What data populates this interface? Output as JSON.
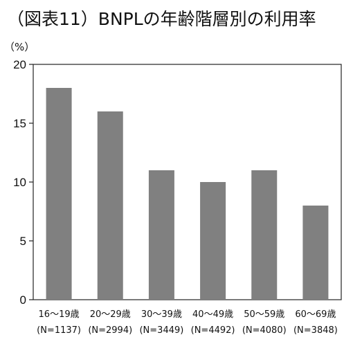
{
  "chart_data": {
    "type": "bar",
    "title": "（図表11）BNPLの年齢階層別の利用率",
    "ylabel": "（%）",
    "xlabel": "",
    "ylim": [
      0,
      20
    ],
    "yticks": [
      0,
      5,
      10,
      15,
      20
    ],
    "grid": false,
    "categories": [
      {
        "name": "16～19歳",
        "sub": "(N=1137)"
      },
      {
        "name": "20～29歳",
        "sub": "(N=2994)"
      },
      {
        "name": "30～39歳",
        "sub": "(N=3449)"
      },
      {
        "name": "40～49歳",
        "sub": "(N=4492)"
      },
      {
        "name": "50～59歳",
        "sub": "(N=4080)"
      },
      {
        "name": "60～69歳",
        "sub": "(N=3848)"
      }
    ],
    "values": [
      18,
      16,
      11,
      10,
      11,
      8
    ],
    "bar_color": "#808080",
    "axis_color": "#222222"
  }
}
